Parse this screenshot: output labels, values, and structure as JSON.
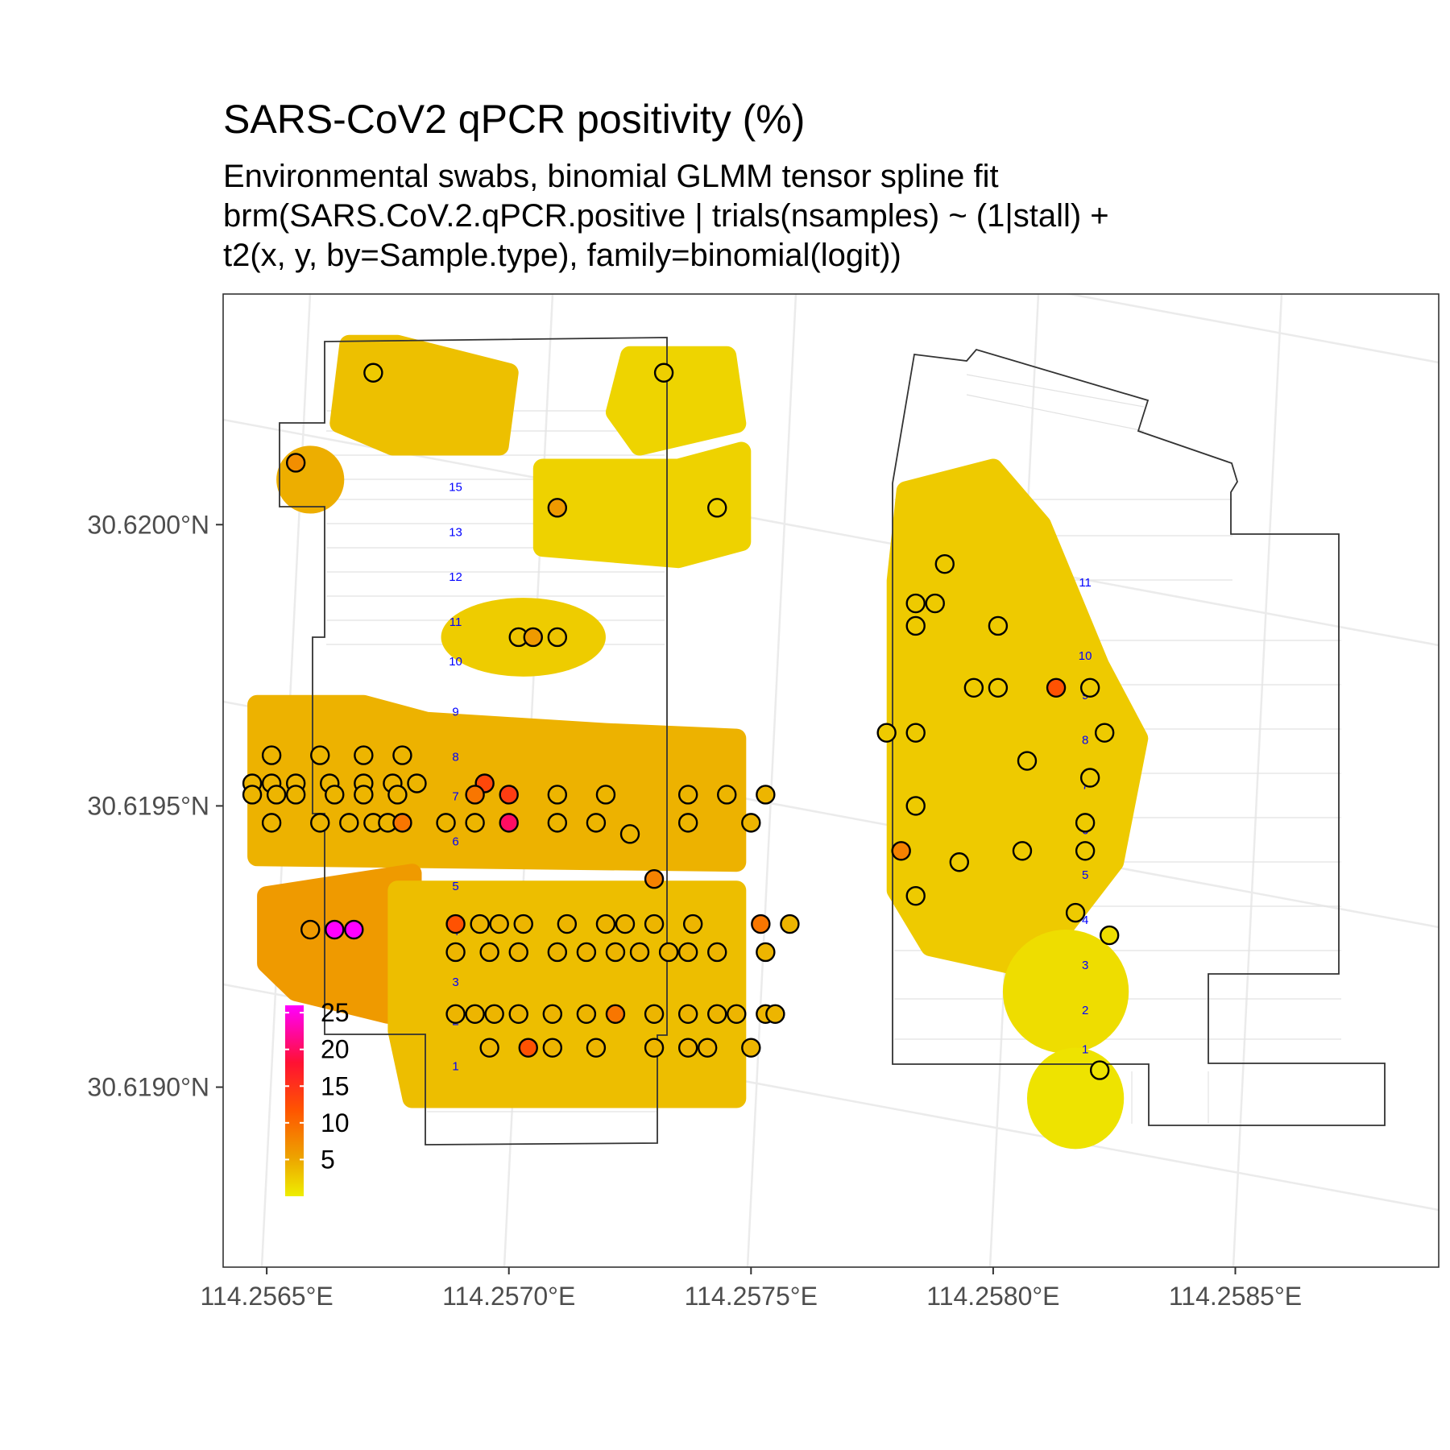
{
  "chart_data": {
    "type": "map",
    "title": "SARS-CoV2 qPCR positivity (%)",
    "subtitle_lines": [
      "Environmental swabs, binomial GLMM tensor spline fit",
      "brm(SARS.CoV.2.qPCR.positive | trials(nsamples) ~ (1|stall) +",
      "t2(x, y, by=Sample.type), family=binomial(logit))"
    ],
    "x_ticks": [
      {
        "value": 114.2565,
        "label": "114.2565°E"
      },
      {
        "value": 114.257,
        "label": "114.2570°E"
      },
      {
        "value": 114.2575,
        "label": "114.2575°E"
      },
      {
        "value": 114.258,
        "label": "114.2580°E"
      },
      {
        "value": 114.2585,
        "label": "114.2585°E"
      }
    ],
    "y_ticks": [
      {
        "value": 30.619,
        "label": "30.6190°N"
      },
      {
        "value": 30.6195,
        "label": "30.6195°N"
      },
      {
        "value": 30.62,
        "label": "30.6200°N"
      }
    ],
    "xlim": [
      114.25641,
      114.25892
    ],
    "ylim": [
      30.61868,
      30.62041
    ],
    "legend": {
      "position": "bottom-left inset",
      "ticks": [
        {
          "value": 5,
          "label": "5"
        },
        {
          "value": 10,
          "label": "10"
        },
        {
          "value": 15,
          "label": "15"
        },
        {
          "value": 20,
          "label": "20"
        },
        {
          "value": 25,
          "label": "25"
        }
      ],
      "range": [
        0,
        26
      ],
      "colors": [
        "#eeee00",
        "#eda400",
        "#ff5500",
        "#ff1133",
        "#ff00ff"
      ]
    },
    "row_labels_west": [
      {
        "label": "15",
        "lon": 114.25689,
        "lat": 30.62006
      },
      {
        "label": "13",
        "lon": 114.25689,
        "lat": 30.61998
      },
      {
        "label": "12",
        "lon": 114.25689,
        "lat": 30.6199
      },
      {
        "label": "11",
        "lon": 114.25689,
        "lat": 30.61982
      },
      {
        "label": "10",
        "lon": 114.25689,
        "lat": 30.61975
      },
      {
        "label": "9",
        "lon": 114.25689,
        "lat": 30.61966
      },
      {
        "label": "8",
        "lon": 114.25689,
        "lat": 30.61958
      },
      {
        "label": "7",
        "lon": 114.25689,
        "lat": 30.61951
      },
      {
        "label": "6",
        "lon": 114.25689,
        "lat": 30.61943
      },
      {
        "label": "5",
        "lon": 114.25689,
        "lat": 30.61935
      },
      {
        "label": "4",
        "lon": 114.25689,
        "lat": 30.61927
      },
      {
        "label": "3",
        "lon": 114.25689,
        "lat": 30.61918
      },
      {
        "label": "2",
        "lon": 114.25689,
        "lat": 30.61911
      },
      {
        "label": "1",
        "lon": 114.25689,
        "lat": 30.61903
      }
    ],
    "row_labels_east": [
      {
        "label": "11",
        "lon": 114.25819,
        "lat": 30.61989
      },
      {
        "label": "10",
        "lon": 114.25819,
        "lat": 30.61976
      },
      {
        "label": "9",
        "lon": 114.25819,
        "lat": 30.61969
      },
      {
        "label": "8",
        "lon": 114.25819,
        "lat": 30.61961
      },
      {
        "label": "7",
        "lon": 114.25819,
        "lat": 30.61953
      },
      {
        "label": "6",
        "lon": 114.25819,
        "lat": 30.61945
      },
      {
        "label": "5",
        "lon": 114.25819,
        "lat": 30.61937
      },
      {
        "label": "4",
        "lon": 114.25819,
        "lat": 30.61929
      },
      {
        "label": "3",
        "lon": 114.25819,
        "lat": 30.61921
      },
      {
        "label": "2",
        "lon": 114.25819,
        "lat": 30.61913
      },
      {
        "label": "1",
        "lon": 114.25819,
        "lat": 30.61906
      }
    ],
    "fit_regions": [
      {
        "type": "poly",
        "value": 3.2,
        "points": [
          [
            114.25676,
            30.62014
          ],
          [
            114.25698,
            30.62014
          ],
          [
            114.257,
            30.62027
          ],
          [
            114.25677,
            30.62032
          ],
          [
            114.25667,
            30.62032
          ],
          [
            114.25665,
            30.62018
          ]
        ]
      },
      {
        "type": "circle",
        "value": 4.5,
        "lon": 114.25659,
        "lat": 30.62008,
        "r": 7e-05
      },
      {
        "type": "poly",
        "value": 1.8,
        "points": [
          [
            114.25725,
            30.6203
          ],
          [
            114.25745,
            30.6203
          ],
          [
            114.25747,
            30.62018
          ],
          [
            114.25727,
            30.62014
          ],
          [
            114.25722,
            30.6202
          ]
        ]
      },
      {
        "type": "poly",
        "value": 2.0,
        "points": [
          [
            114.25707,
            30.6201
          ],
          [
            114.25735,
            30.6201
          ],
          [
            114.25748,
            30.62013
          ],
          [
            114.25748,
            30.61997
          ],
          [
            114.25735,
            30.61994
          ],
          [
            114.25707,
            30.61996
          ]
        ]
      },
      {
        "type": "ellipse",
        "value": 2.4,
        "lon": 114.25703,
        "lat": 30.6198,
        "rx": 0.00017,
        "ry": 7e-05
      },
      {
        "type": "poly",
        "value": 4.2,
        "points": [
          [
            114.25648,
            30.61968
          ],
          [
            114.2567,
            30.61968
          ],
          [
            114.25683,
            30.61965
          ],
          [
            114.2572,
            30.61963
          ],
          [
            114.25747,
            30.61962
          ],
          [
            114.25747,
            30.6194
          ],
          [
            114.25648,
            30.61941
          ]
        ]
      },
      {
        "type": "poly",
        "value": 6.0,
        "points": [
          [
            114.2565,
            30.61934
          ],
          [
            114.2568,
            30.61938
          ],
          [
            114.2568,
            30.6192
          ],
          [
            114.25675,
            30.61913
          ],
          [
            114.25656,
            30.61917
          ],
          [
            114.2565,
            30.61922
          ]
        ]
      },
      {
        "type": "poly",
        "value": 3.4,
        "points": [
          [
            114.25677,
            30.61935
          ],
          [
            114.25747,
            30.61935
          ],
          [
            114.25747,
            30.61898
          ],
          [
            114.2568,
            30.61898
          ],
          [
            114.25677,
            30.6191
          ]
        ]
      },
      {
        "type": "poly",
        "value": 2.5,
        "points": [
          [
            114.25782,
            30.62006
          ],
          [
            114.258,
            30.6201
          ],
          [
            114.2581,
            30.62
          ],
          [
            114.25822,
            30.61975
          ],
          [
            114.2583,
            30.61962
          ],
          [
            114.25825,
            30.6194
          ],
          [
            114.25808,
            30.61921
          ],
          [
            114.25787,
            30.61925
          ],
          [
            114.2578,
            30.61935
          ],
          [
            114.2578,
            30.6199
          ]
        ]
      },
      {
        "type": "ellipse",
        "value": 1.2,
        "lon": 114.25815,
        "lat": 30.61917,
        "rx": 0.00013,
        "ry": 0.00011
      },
      {
        "type": "ellipse",
        "value": 0.8,
        "lon": 114.25817,
        "lat": 30.61898,
        "rx": 0.0001,
        "ry": 9e-05
      }
    ],
    "samples": [
      {
        "lon": 114.25672,
        "lat": 30.62027,
        "value": 2.5
      },
      {
        "lon": 114.25656,
        "lat": 30.62011,
        "value": 7.0
      },
      {
        "lon": 114.25732,
        "lat": 30.62027,
        "value": 2.2
      },
      {
        "lon": 114.2571,
        "lat": 30.62003,
        "value": 6.0
      },
      {
        "lon": 114.25743,
        "lat": 30.62003,
        "value": 2.0
      },
      {
        "lon": 114.25702,
        "lat": 30.6198,
        "value": 3.0
      },
      {
        "lon": 114.25705,
        "lat": 30.6198,
        "value": 6.0
      },
      {
        "lon": 114.2571,
        "lat": 30.6198,
        "value": 3.0
      },
      {
        "lon": 114.25651,
        "lat": 30.61959,
        "value": 4.0
      },
      {
        "lon": 114.25661,
        "lat": 30.61959,
        "value": 4.0
      },
      {
        "lon": 114.2567,
        "lat": 30.61959,
        "value": 4.0
      },
      {
        "lon": 114.25678,
        "lat": 30.61959,
        "value": 4.0
      },
      {
        "lon": 114.25647,
        "lat": 30.61954,
        "value": 4.0
      },
      {
        "lon": 114.25651,
        "lat": 30.61954,
        "value": 4.0
      },
      {
        "lon": 114.25656,
        "lat": 30.61954,
        "value": 4.0
      },
      {
        "lon": 114.25663,
        "lat": 30.61954,
        "value": 4.0
      },
      {
        "lon": 114.2567,
        "lat": 30.61954,
        "value": 4.0
      },
      {
        "lon": 114.25676,
        "lat": 30.61954,
        "value": 4.0
      },
      {
        "lon": 114.25681,
        "lat": 30.61954,
        "value": 4.0
      },
      {
        "lon": 114.25647,
        "lat": 30.61952,
        "value": 4.0
      },
      {
        "lon": 114.25652,
        "lat": 30.61952,
        "value": 4.0
      },
      {
        "lon": 114.25656,
        "lat": 30.61952,
        "value": 4.0
      },
      {
        "lon": 114.25664,
        "lat": 30.61952,
        "value": 4.0
      },
      {
        "lon": 114.2567,
        "lat": 30.61952,
        "value": 4.0
      },
      {
        "lon": 114.25677,
        "lat": 30.61952,
        "value": 4.0
      },
      {
        "lon": 114.25651,
        "lat": 30.61947,
        "value": 4.0
      },
      {
        "lon": 114.25661,
        "lat": 30.61947,
        "value": 4.0
      },
      {
        "lon": 114.25667,
        "lat": 30.61947,
        "value": 4.0
      },
      {
        "lon": 114.25672,
        "lat": 30.61947,
        "value": 4.0
      },
      {
        "lon": 114.25675,
        "lat": 30.61947,
        "value": 4.0
      },
      {
        "lon": 114.25678,
        "lat": 30.61947,
        "value": 9.0
      },
      {
        "lon": 114.25695,
        "lat": 30.61954,
        "value": 13.0
      },
      {
        "lon": 114.25693,
        "lat": 30.61952,
        "value": 9.0
      },
      {
        "lon": 114.257,
        "lat": 30.61952,
        "value": 14.0
      },
      {
        "lon": 114.257,
        "lat": 30.61947,
        "value": 20.0
      },
      {
        "lon": 114.2571,
        "lat": 30.61952,
        "value": 4.0
      },
      {
        "lon": 114.2572,
        "lat": 30.61952,
        "value": 4.0
      },
      {
        "lon": 114.25737,
        "lat": 30.61952,
        "value": 4.0
      },
      {
        "lon": 114.25745,
        "lat": 30.61952,
        "value": 4.0
      },
      {
        "lon": 114.25753,
        "lat": 30.61952,
        "value": 4.0
      },
      {
        "lon": 114.25687,
        "lat": 30.61947,
        "value": 4.0
      },
      {
        "lon": 114.25693,
        "lat": 30.61947,
        "value": 4.0
      },
      {
        "lon": 114.2571,
        "lat": 30.61947,
        "value": 4.0
      },
      {
        "lon": 114.25718,
        "lat": 30.61947,
        "value": 4.0
      },
      {
        "lon": 114.25725,
        "lat": 30.61945,
        "value": 4.0
      },
      {
        "lon": 114.25737,
        "lat": 30.61947,
        "value": 4.0
      },
      {
        "lon": 114.2575,
        "lat": 30.61947,
        "value": 4.0
      },
      {
        "lon": 114.2573,
        "lat": 30.61937,
        "value": 8.0
      },
      {
        "lon": 114.25659,
        "lat": 30.61928,
        "value": 6.0
      },
      {
        "lon": 114.25664,
        "lat": 30.61928,
        "value": 26.0
      },
      {
        "lon": 114.25668,
        "lat": 30.61928,
        "value": 26.0
      },
      {
        "lon": 114.25689,
        "lat": 30.61929,
        "value": 12.0
      },
      {
        "lon": 114.25694,
        "lat": 30.61929,
        "value": 4.0
      },
      {
        "lon": 114.25698,
        "lat": 30.61929,
        "value": 4.0
      },
      {
        "lon": 114.25703,
        "lat": 30.61929,
        "value": 4.0
      },
      {
        "lon": 114.25712,
        "lat": 30.61929,
        "value": 4.0
      },
      {
        "lon": 114.2572,
        "lat": 30.61929,
        "value": 4.0
      },
      {
        "lon": 114.25724,
        "lat": 30.61929,
        "value": 4.0
      },
      {
        "lon": 114.2573,
        "lat": 30.61929,
        "value": 4.0
      },
      {
        "lon": 114.25738,
        "lat": 30.61929,
        "value": 4.0
      },
      {
        "lon": 114.25752,
        "lat": 30.61929,
        "value": 9.0
      },
      {
        "lon": 114.25758,
        "lat": 30.61929,
        "value": 4.0
      },
      {
        "lon": 114.25689,
        "lat": 30.61924,
        "value": 4.0
      },
      {
        "lon": 114.25696,
        "lat": 30.61924,
        "value": 4.0
      },
      {
        "lon": 114.25702,
        "lat": 30.61924,
        "value": 4.0
      },
      {
        "lon": 114.2571,
        "lat": 30.61924,
        "value": 4.0
      },
      {
        "lon": 114.25716,
        "lat": 30.61924,
        "value": 4.0
      },
      {
        "lon": 114.25722,
        "lat": 30.61924,
        "value": 4.0
      },
      {
        "lon": 114.25727,
        "lat": 30.61924,
        "value": 4.0
      },
      {
        "lon": 114.25733,
        "lat": 30.61924,
        "value": 4.0
      },
      {
        "lon": 114.25737,
        "lat": 30.61924,
        "value": 4.0
      },
      {
        "lon": 114.25743,
        "lat": 30.61924,
        "value": 4.0
      },
      {
        "lon": 114.25753,
        "lat": 30.61924,
        "value": 4.0
      },
      {
        "lon": 114.25689,
        "lat": 30.61913,
        "value": 4.0
      },
      {
        "lon": 114.25693,
        "lat": 30.61913,
        "value": 4.0
      },
      {
        "lon": 114.25697,
        "lat": 30.61913,
        "value": 4.0
      },
      {
        "lon": 114.25702,
        "lat": 30.61913,
        "value": 4.0
      },
      {
        "lon": 114.25709,
        "lat": 30.61913,
        "value": 4.0
      },
      {
        "lon": 114.25716,
        "lat": 30.61913,
        "value": 4.0
      },
      {
        "lon": 114.25722,
        "lat": 30.61913,
        "value": 9.0
      },
      {
        "lon": 114.2573,
        "lat": 30.61913,
        "value": 4.0
      },
      {
        "lon": 114.25737,
        "lat": 30.61913,
        "value": 4.0
      },
      {
        "lon": 114.25743,
        "lat": 30.61913,
        "value": 4.0
      },
      {
        "lon": 114.25747,
        "lat": 30.61913,
        "value": 4.0
      },
      {
        "lon": 114.25753,
        "lat": 30.61913,
        "value": 4.0
      },
      {
        "lon": 114.25755,
        "lat": 30.61913,
        "value": 4.0
      },
      {
        "lon": 114.25696,
        "lat": 30.61907,
        "value": 4.0
      },
      {
        "lon": 114.25704,
        "lat": 30.61907,
        "value": 12.0
      },
      {
        "lon": 114.25709,
        "lat": 30.61907,
        "value": 4.0
      },
      {
        "lon": 114.25718,
        "lat": 30.61907,
        "value": 4.0
      },
      {
        "lon": 114.2573,
        "lat": 30.61907,
        "value": 4.0
      },
      {
        "lon": 114.25737,
        "lat": 30.61907,
        "value": 4.0
      },
      {
        "lon": 114.25741,
        "lat": 30.61907,
        "value": 4.0
      },
      {
        "lon": 114.2575,
        "lat": 30.61907,
        "value": 4.0
      },
      {
        "lon": 114.2579,
        "lat": 30.61993,
        "value": 2.5
      },
      {
        "lon": 114.25784,
        "lat": 30.61986,
        "value": 2.5
      },
      {
        "lon": 114.25788,
        "lat": 30.61986,
        "value": 2.5
      },
      {
        "lon": 114.25784,
        "lat": 30.61982,
        "value": 2.5
      },
      {
        "lon": 114.25801,
        "lat": 30.61982,
        "value": 2.5
      },
      {
        "lon": 114.25796,
        "lat": 30.61971,
        "value": 2.5
      },
      {
        "lon": 114.25801,
        "lat": 30.61971,
        "value": 2.5
      },
      {
        "lon": 114.25813,
        "lat": 30.61971,
        "value": 12.0
      },
      {
        "lon": 114.2582,
        "lat": 30.61971,
        "value": 2.5
      },
      {
        "lon": 114.25778,
        "lat": 30.61963,
        "value": 2.5
      },
      {
        "lon": 114.25784,
        "lat": 30.61963,
        "value": 2.5
      },
      {
        "lon": 114.25823,
        "lat": 30.61963,
        "value": 2.5
      },
      {
        "lon": 114.25807,
        "lat": 30.61958,
        "value": 2.5
      },
      {
        "lon": 114.2582,
        "lat": 30.61955,
        "value": 2.5
      },
      {
        "lon": 114.25784,
        "lat": 30.6195,
        "value": 2.5
      },
      {
        "lon": 114.25819,
        "lat": 30.61947,
        "value": 2.5
      },
      {
        "lon": 114.25781,
        "lat": 30.61942,
        "value": 8.0
      },
      {
        "lon": 114.25806,
        "lat": 30.61942,
        "value": 2.5
      },
      {
        "lon": 114.25819,
        "lat": 30.61942,
        "value": 2.5
      },
      {
        "lon": 114.25793,
        "lat": 30.6194,
        "value": 2.5
      },
      {
        "lon": 114.25784,
        "lat": 30.61934,
        "value": 2.5
      },
      {
        "lon": 114.25817,
        "lat": 30.61931,
        "value": 2.5
      },
      {
        "lon": 114.25824,
        "lat": 30.61927,
        "value": 1.2
      },
      {
        "lon": 114.25822,
        "lat": 30.61903,
        "value": 0.8
      }
    ]
  }
}
